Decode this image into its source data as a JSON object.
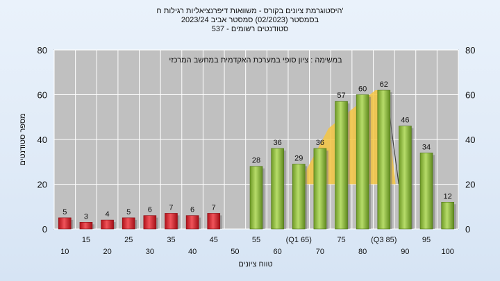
{
  "chart_data": {
    "type": "bar",
    "title_lines": [
      "היסטוגרמת ציונים בקורס - משוואות דיפרנציאליות רגילות ח'",
      "בסמסטר  (02/2023)  סמסטר אביב 2023/24",
      "537 - סטודנטים רשומים"
    ],
    "annotation": "במשימה : ציון סופי במערכת האקדמית במחשב המרכזי",
    "xlabel": "טווח ציונים",
    "ylabel": "מספר סטודנטים",
    "ylim": [
      0,
      80
    ],
    "yticks": [
      0,
      20,
      40,
      60,
      80
    ],
    "grid": true,
    "categories": [
      "10",
      "15",
      "20",
      "25",
      "30",
      "35",
      "40",
      "45",
      "50",
      "55",
      "60",
      "65",
      "70",
      "75",
      "80",
      "85",
      "90",
      "95",
      "100"
    ],
    "xtick_labels": [
      "10",
      "15",
      "20",
      "25",
      "30",
      "35",
      "40",
      "45",
      "50",
      "55",
      "60",
      "(Q1 65)",
      "70",
      "75",
      "80",
      "(Q3 85)",
      "90",
      "95",
      "100"
    ],
    "values": [
      5,
      3,
      4,
      5,
      6,
      7,
      6,
      7,
      0,
      28,
      36,
      29,
      36,
      57,
      60,
      62,
      46,
      34,
      12
    ],
    "fail_threshold": 50,
    "quartile_band": {
      "from": "65",
      "to": "85",
      "top": 62
    },
    "colors": {
      "fail": "#d8242c",
      "pass": "#8fbf3c",
      "band": "#f5c542",
      "plot_bg": "#c0c0c0",
      "grid": "#ffffff",
      "median_line": "#444444"
    }
  }
}
